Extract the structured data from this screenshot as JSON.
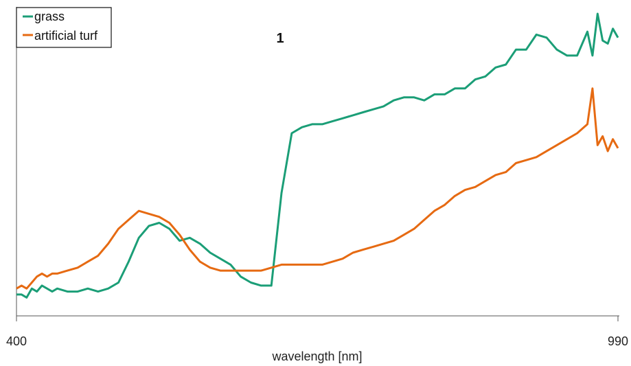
{
  "chart_data": {
    "type": "line",
    "panel_label": "1",
    "xlabel": "wavelength [nm]",
    "ylabel": "",
    "xlim": [
      400,
      990
    ],
    "ylim": [
      0,
      1
    ],
    "xticks": [
      400,
      990
    ],
    "xtick_labels": [
      "400",
      "990"
    ],
    "legend_position": "top-left",
    "series": [
      {
        "name": "grass",
        "color": "#1b9e77",
        "x": [
          400,
          405,
          410,
          415,
          420,
          425,
          430,
          435,
          440,
          450,
          460,
          470,
          480,
          490,
          500,
          510,
          520,
          530,
          540,
          550,
          560,
          570,
          580,
          590,
          600,
          610,
          620,
          630,
          640,
          650,
          660,
          670,
          680,
          690,
          700,
          710,
          720,
          730,
          740,
          750,
          760,
          770,
          780,
          790,
          800,
          810,
          820,
          830,
          840,
          850,
          860,
          870,
          880,
          890,
          900,
          910,
          920,
          930,
          940,
          950,
          960,
          965,
          970,
          975,
          980,
          985,
          990
        ],
        "y": [
          0.06,
          0.06,
          0.05,
          0.08,
          0.07,
          0.09,
          0.08,
          0.07,
          0.08,
          0.07,
          0.07,
          0.08,
          0.07,
          0.08,
          0.1,
          0.17,
          0.25,
          0.29,
          0.3,
          0.28,
          0.24,
          0.25,
          0.23,
          0.2,
          0.18,
          0.16,
          0.12,
          0.1,
          0.09,
          0.09,
          0.4,
          0.6,
          0.62,
          0.63,
          0.63,
          0.64,
          0.65,
          0.66,
          0.67,
          0.68,
          0.69,
          0.71,
          0.72,
          0.72,
          0.71,
          0.73,
          0.73,
          0.75,
          0.75,
          0.78,
          0.79,
          0.82,
          0.83,
          0.88,
          0.88,
          0.93,
          0.92,
          0.88,
          0.86,
          0.86,
          0.94,
          0.86,
          1.0,
          0.91,
          0.9,
          0.95,
          0.92
        ]
      },
      {
        "name": "artificial turf",
        "color": "#e66a12",
        "x": [
          400,
          405,
          410,
          415,
          420,
          425,
          430,
          435,
          440,
          450,
          460,
          470,
          480,
          490,
          500,
          510,
          520,
          530,
          540,
          550,
          560,
          570,
          580,
          590,
          600,
          610,
          620,
          630,
          640,
          650,
          660,
          670,
          680,
          690,
          700,
          710,
          720,
          730,
          740,
          750,
          760,
          770,
          780,
          790,
          800,
          810,
          820,
          830,
          840,
          850,
          860,
          870,
          880,
          890,
          900,
          910,
          920,
          930,
          940,
          950,
          960,
          965,
          970,
          975,
          980,
          985,
          990
        ],
        "y": [
          0.08,
          0.09,
          0.08,
          0.1,
          0.12,
          0.13,
          0.12,
          0.13,
          0.13,
          0.14,
          0.15,
          0.17,
          0.19,
          0.23,
          0.28,
          0.31,
          0.34,
          0.33,
          0.32,
          0.3,
          0.26,
          0.21,
          0.17,
          0.15,
          0.14,
          0.14,
          0.14,
          0.14,
          0.14,
          0.15,
          0.16,
          0.16,
          0.16,
          0.16,
          0.16,
          0.17,
          0.18,
          0.2,
          0.21,
          0.22,
          0.23,
          0.24,
          0.26,
          0.28,
          0.31,
          0.34,
          0.36,
          0.39,
          0.41,
          0.42,
          0.44,
          0.46,
          0.47,
          0.5,
          0.51,
          0.52,
          0.54,
          0.56,
          0.58,
          0.6,
          0.63,
          0.75,
          0.56,
          0.59,
          0.54,
          0.58,
          0.55
        ]
      }
    ]
  }
}
